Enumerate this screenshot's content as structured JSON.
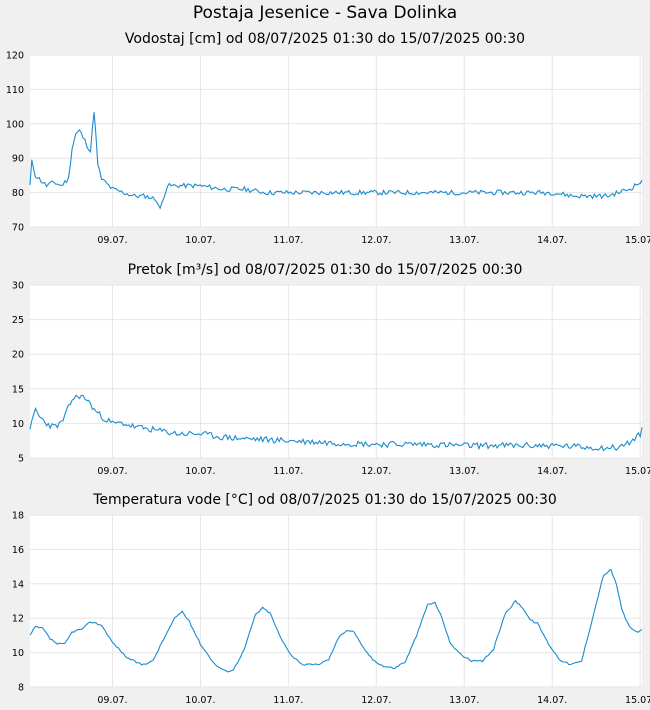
{
  "page": {
    "title": "Postaja Jesenice - Sava Dolinka"
  },
  "style": {
    "line_color": "#1a8ccf",
    "grid_color": "#e6e6e6",
    "plot_bg": "#ffffff",
    "page_bg": "#f0f0f0"
  },
  "chart_data": [
    {
      "type": "line",
      "title": "Vodostaj [cm] od 08/07/2025 01:30 do 15/07/2025 00:30",
      "xlabel": "",
      "ylabel": "",
      "x_range": [
        "08/07/2025 01:30",
        "15/07/2025 00:30"
      ],
      "xticks": [
        "09.07.",
        "10.07.",
        "11.07.",
        "12.07.",
        "13.07.",
        "14.07.",
        "15.07."
      ],
      "xtick_positions": [
        "09/07/2025 00:00",
        "10/07/2025 00:00",
        "11/07/2025 00:00",
        "12/07/2025 00:00",
        "13/07/2025 00:00",
        "14/07/2025 00:00",
        "15/07/2025 00:00"
      ],
      "ylim": [
        70,
        120
      ],
      "yticks": [
        70,
        80,
        90,
        100,
        110,
        120
      ],
      "grid": true,
      "series": [
        {
          "x": [
            "08/07/2025 01:30",
            "08/07/2025 02:00",
            "08/07/2025 03:00",
            "08/07/2025 04:00",
            "08/07/2025 05:00",
            "08/07/2025 06:00",
            "08/07/2025 08:00",
            "08/07/2025 10:00",
            "08/07/2025 11:00",
            "08/07/2025 12:00",
            "08/07/2025 13:00",
            "08/07/2025 14:00",
            "08/07/2025 15:00",
            "08/07/2025 16:00",
            "08/07/2025 17:00",
            "08/07/2025 18:00",
            "08/07/2025 19:00",
            "08/07/2025 20:00",
            "08/07/2025 20:30",
            "08/07/2025 21:00",
            "08/07/2025 22:00",
            "09/07/2025 00:00",
            "09/07/2025 03:00",
            "09/07/2025 06:00",
            "09/07/2025 09:00",
            "09/07/2025 12:00",
            "09/07/2025 13:00",
            "09/07/2025 14:00",
            "09/07/2025 15:00",
            "09/07/2025 17:00",
            "09/07/2025 20:00",
            "10/07/2025 00:00",
            "10/07/2025 06:00",
            "10/07/2025 12:00",
            "10/07/2025 18:00",
            "11/07/2025 00:00",
            "11/07/2025 12:00",
            "12/07/2025 00:00",
            "12/07/2025 12:00",
            "13/07/2025 00:00",
            "13/07/2025 12:00",
            "14/07/2025 00:00",
            "14/07/2025 06:00",
            "14/07/2025 12:00",
            "14/07/2025 15:00",
            "14/07/2025 18:00",
            "14/07/2025 21:00",
            "15/07/2025 00:00",
            "15/07/2025 00:30"
          ],
          "y": [
            82,
            89,
            85,
            84,
            83,
            82,
            83,
            82,
            83,
            84,
            93,
            97,
            98,
            96,
            94,
            92,
            104,
            88,
            86,
            84,
            83,
            81,
            80,
            79,
            79,
            78,
            75,
            79,
            82,
            82,
            82,
            82,
            81,
            81,
            80,
            80,
            80,
            80,
            80,
            80,
            80,
            80,
            79,
            79,
            79,
            80,
            81,
            83,
            83
          ]
        }
      ]
    },
    {
      "type": "line",
      "title": "Pretok [m³/s] od 08/07/2025 01:30 do 15/07/2025 00:30",
      "xlabel": "",
      "ylabel": "",
      "x_range": [
        "08/07/2025 01:30",
        "15/07/2025 00:30"
      ],
      "xticks": [
        "09.07.",
        "10.07.",
        "11.07.",
        "12.07.",
        "13.07.",
        "14.07.",
        "15.07."
      ],
      "xtick_positions": [
        "09/07/2025 00:00",
        "10/07/2025 00:00",
        "11/07/2025 00:00",
        "12/07/2025 00:00",
        "13/07/2025 00:00",
        "14/07/2025 00:00",
        "15/07/2025 00:00"
      ],
      "ylim": [
        5,
        30
      ],
      "yticks": [
        5,
        10,
        15,
        20,
        25,
        30
      ],
      "grid": true,
      "series": [
        {
          "x": [
            "08/07/2025 01:30",
            "08/07/2025 02:00",
            "08/07/2025 03:00",
            "08/07/2025 04:00",
            "08/07/2025 06:00",
            "08/07/2025 08:00",
            "08/07/2025 10:00",
            "08/07/2025 11:00",
            "08/07/2025 13:00",
            "08/07/2025 15:00",
            "08/07/2025 17:00",
            "08/07/2025 19:00",
            "08/07/2025 21:00",
            "09/07/2025 00:00",
            "09/07/2025 03:00",
            "09/07/2025 06:00",
            "09/07/2025 12:00",
            "09/07/2025 18:00",
            "10/07/2025 00:00",
            "10/07/2025 06:00",
            "10/07/2025 12:00",
            "11/07/2025 00:00",
            "11/07/2025 12:00",
            "12/07/2025 00:00",
            "12/07/2025 12:00",
            "13/07/2025 00:00",
            "13/07/2025 12:00",
            "14/07/2025 00:00",
            "14/07/2025 12:00",
            "14/07/2025 18:00",
            "14/07/2025 22:00",
            "15/07/2025 00:00",
            "15/07/2025 00:30"
          ],
          "y": [
            9.5,
            10,
            12,
            11,
            10,
            9.5,
            10,
            11,
            13.5,
            14,
            13.5,
            12,
            11,
            10,
            10,
            9.5,
            9,
            8.5,
            8.5,
            8,
            7.8,
            7.5,
            7.2,
            7,
            7,
            6.8,
            6.8,
            6.8,
            6.5,
            6.5,
            7.5,
            8.5,
            9
          ]
        }
      ]
    },
    {
      "type": "line",
      "title": "Temperatura vode [°C] od 08/07/2025 01:30 do 15/07/2025 00:30",
      "xlabel": "",
      "ylabel": "",
      "x_range": [
        "08/07/2025 01:30",
        "15/07/2025 00:30"
      ],
      "xticks": [
        "09.07.",
        "10.07.",
        "11.07.",
        "12.07.",
        "13.07.",
        "14.07.",
        "15.07."
      ],
      "xtick_positions": [
        "09/07/2025 00:00",
        "10/07/2025 00:00",
        "11/07/2025 00:00",
        "12/07/2025 00:00",
        "13/07/2025 00:00",
        "14/07/2025 00:00",
        "15/07/2025 00:00"
      ],
      "ylim": [
        8,
        18
      ],
      "yticks": [
        8,
        10,
        12,
        14,
        16,
        18
      ],
      "grid": true,
      "series": [
        {
          "x": [
            "08/07/2025 01:30",
            "08/07/2025 03:00",
            "08/07/2025 05:00",
            "08/07/2025 07:00",
            "08/07/2025 09:00",
            "08/07/2025 11:00",
            "08/07/2025 13:00",
            "08/07/2025 16:00",
            "08/07/2025 18:00",
            "08/07/2025 21:00",
            "09/07/2025 00:00",
            "09/07/2025 04:00",
            "09/07/2025 08:00",
            "09/07/2025 11:00",
            "09/07/2025 14:00",
            "09/07/2025 17:00",
            "09/07/2025 19:00",
            "09/07/2025 21:00",
            "10/07/2025 00:00",
            "10/07/2025 04:00",
            "10/07/2025 07:00",
            "10/07/2025 09:00",
            "10/07/2025 12:00",
            "10/07/2025 15:00",
            "10/07/2025 17:00",
            "10/07/2025 19:00",
            "10/07/2025 22:00",
            "11/07/2025 01:00",
            "11/07/2025 04:00",
            "11/07/2025 08:00",
            "11/07/2025 11:00",
            "11/07/2025 14:00",
            "11/07/2025 16:00",
            "11/07/2025 18:00",
            "11/07/2025 20:00",
            "11/07/2025 23:00",
            "12/07/2025 02:00",
            "12/07/2025 05:00",
            "12/07/2025 08:00",
            "12/07/2025 11:00",
            "12/07/2025 14:00",
            "12/07/2025 16:00",
            "12/07/2025 18:00",
            "12/07/2025 20:00",
            "12/07/2025 23:00",
            "13/07/2025 02:00",
            "13/07/2025 05:00",
            "13/07/2025 08:00",
            "13/07/2025 11:00",
            "13/07/2025 14:00",
            "13/07/2025 16:00",
            "13/07/2025 18:00",
            "13/07/2025 20:00",
            "13/07/2025 23:00",
            "14/07/2025 02:00",
            "14/07/2025 05:00",
            "14/07/2025 08:00",
            "14/07/2025 11:00",
            "14/07/2025 14:00",
            "14/07/2025 16:00",
            "14/07/2025 17:30",
            "14/07/2025 19:00",
            "14/07/2025 21:00",
            "14/07/2025 23:00",
            "15/07/2025 00:30"
          ],
          "y": [
            11,
            11.5,
            11.4,
            10.8,
            10.5,
            10.5,
            11.2,
            11.4,
            11.8,
            11.6,
            10.6,
            9.7,
            9.3,
            9.5,
            10.8,
            12,
            12.4,
            11.8,
            10.5,
            9.3,
            8.9,
            9,
            10.2,
            12.2,
            12.6,
            12.3,
            10.8,
            9.8,
            9.3,
            9.3,
            9.6,
            11,
            11.3,
            11.2,
            10.4,
            9.6,
            9.2,
            9.1,
            9.5,
            11,
            12.8,
            12.9,
            12,
            10.6,
            9.9,
            9.5,
            9.5,
            10.2,
            12.2,
            13,
            12.6,
            11.9,
            11.7,
            10.5,
            9.6,
            9.3,
            9.5,
            12,
            14.5,
            14.8,
            14,
            12.5,
            11.5,
            11.2,
            11.3
          ]
        }
      ]
    }
  ]
}
